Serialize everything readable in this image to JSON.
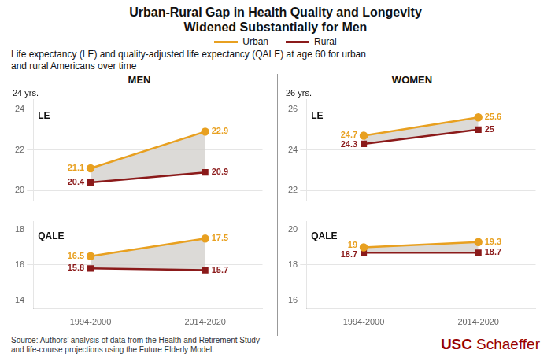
{
  "title": "Urban-Rural Gap in Health Quality and Longevity\nWidened Substantially for Men",
  "subtitle": "Life expectancy (LE) and quality-adjusted life expectancy (QALE) at age 60 for urban\nand rural Americans over time",
  "source": "Source: Authors’ analysis of data from the Health and Retirement Study\nand life-course projections using the Future Elderly Model.",
  "annotations": [
    "USC",
    "Schaeffer"
  ],
  "chart_data": [
    {
      "type": "line",
      "title": "MEN",
      "annotations": [
        "LE",
        "24 yrs."
      ],
      "categories": [
        null,
        null
      ],
      "series": [
        {
          "name": "Urban",
          "color": "#E8A020",
          "marker": "circle",
          "values": [
            21.1,
            22.9
          ]
        },
        {
          "name": "Rural",
          "color": "#8B1A1A",
          "marker": "square",
          "values": [
            20.4,
            20.9
          ]
        }
      ],
      "ylim": [
        19.5,
        24.5
      ],
      "yticks": [
        20,
        22,
        24
      ],
      "grid": true,
      "data_labels": true,
      "legend": "top"
    },
    {
      "type": "line",
      "annotations": [
        "QALE"
      ],
      "categories": [
        "1994-2000",
        "2014-2020"
      ],
      "series": [
        {
          "name": "Urban",
          "color": "#E8A020",
          "marker": "circle",
          "values": [
            16.5,
            17.5
          ]
        },
        {
          "name": "Rural",
          "color": "#8B1A1A",
          "marker": "square",
          "values": [
            15.8,
            15.7
          ]
        }
      ],
      "ylim": [
        13.5,
        18.5
      ],
      "yticks": [
        14,
        16,
        18
      ],
      "grid": true,
      "data_labels": true
    },
    {
      "type": "line",
      "title": "WOMEN",
      "annotations": [
        "LE",
        "26 yrs."
      ],
      "categories": [
        null,
        null
      ],
      "series": [
        {
          "name": "Urban",
          "color": "#E8A020",
          "marker": "circle",
          "values": [
            24.7,
            25.6
          ]
        },
        {
          "name": "Rural",
          "color": "#8B1A1A",
          "marker": "square",
          "values": [
            24.3,
            25.0
          ]
        }
      ],
      "ylim": [
        21.5,
        26.5
      ],
      "yticks": [
        22,
        24,
        26
      ],
      "grid": true,
      "data_labels": true
    },
    {
      "type": "line",
      "annotations": [
        "QALE"
      ],
      "categories": [
        "1994-2000",
        "2014-2020"
      ],
      "series": [
        {
          "name": "Urban",
          "color": "#E8A020",
          "marker": "circle",
          "values": [
            19.0,
            19.3
          ]
        },
        {
          "name": "Rural",
          "color": "#8B1A1A",
          "marker": "square",
          "values": [
            18.7,
            18.7
          ]
        }
      ],
      "ylim": [
        15.5,
        20.5
      ],
      "yticks": [
        16,
        18,
        20
      ],
      "grid": true,
      "data_labels": true
    }
  ]
}
